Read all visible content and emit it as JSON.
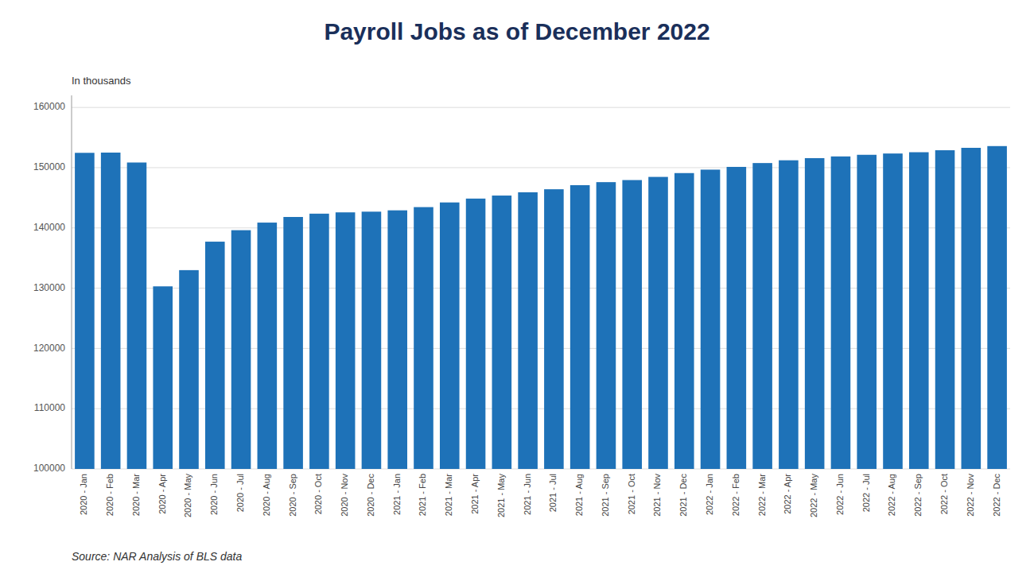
{
  "chart_data": {
    "type": "bar",
    "title": "Payroll Jobs as of December 2022",
    "subtitle": "In thousands",
    "source": "Source: NAR Analysis of BLS data",
    "color": "#1e72b8",
    "ylim": [
      100000,
      162000
    ],
    "yticks": [
      100000,
      110000,
      120000,
      130000,
      140000,
      150000,
      160000
    ],
    "grid": true,
    "categories": [
      "2020 - Jan",
      "2020 - Feb",
      "2020 - Mar",
      "2020 - Apr",
      "2020 - May",
      "2020 - Jun",
      "2020 - Jul",
      "2020 - Aug",
      "2020 - Sep",
      "2020 - Oct",
      "2020 - Nov",
      "2020 - Dec",
      "2021 - Jan",
      "2021 - Feb",
      "2021 - Mar",
      "2021 - Apr",
      "2021 - May",
      "2021 - Jun",
      "2021 - Jul",
      "2021 - Aug",
      "2021 - Sep",
      "2021 - Oct",
      "2021 - Nov",
      "2021 - Dec",
      "2022 - Jan",
      "2022 - Feb",
      "2022 - Mar",
      "2022 - Apr",
      "2022 - May",
      "2022 - Jun",
      "2022 - Jul",
      "2022 - Aug",
      "2022 - Sep",
      "2022 - Oct",
      "2022 - Nov",
      "2022 - Dec"
    ],
    "values": [
      152463,
      152504,
      150857,
      130303,
      132994,
      137720,
      139624,
      140884,
      141819,
      142367,
      142583,
      142699,
      142920,
      143454,
      144230,
      144870,
      145372,
      145919,
      146418,
      147095,
      147600,
      147944,
      148468,
      149103,
      149674,
      150131,
      150768,
      151228,
      151585,
      151867,
      152138,
      152351,
      152565,
      152892,
      153295,
      153584
    ]
  }
}
